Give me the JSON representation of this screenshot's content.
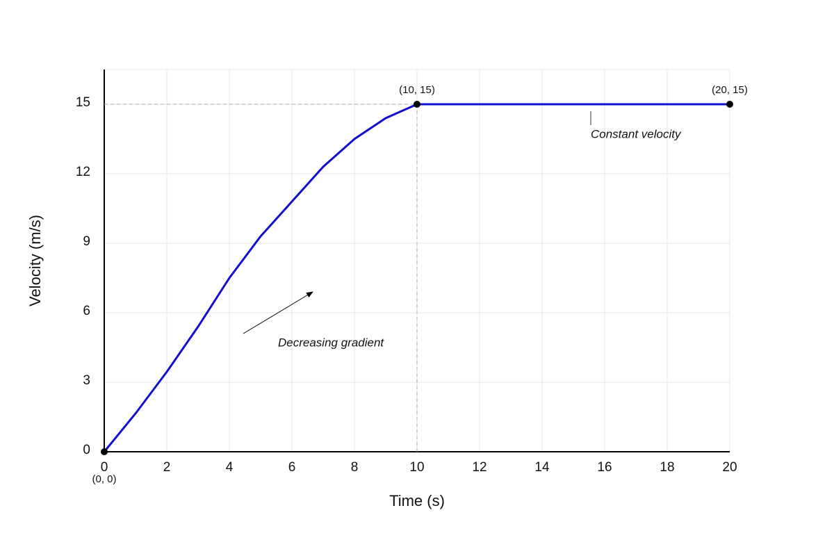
{
  "chart_data": {
    "type": "line",
    "x_label": "Time (s)",
    "y_label": "Velocity (m/s)",
    "x": [
      0,
      1,
      2,
      3,
      4,
      5,
      6,
      7,
      8,
      9,
      10,
      20
    ],
    "series": [
      {
        "name": "Velocity",
        "color": "#1010cc",
        "values": [
          0,
          1.65,
          3.45,
          5.4,
          7.5,
          9.3,
          10.8,
          12.3,
          13.5,
          14.4,
          15,
          15
        ]
      }
    ],
    "xlim": [
      0,
      20
    ],
    "xticks": [
      0,
      2,
      4,
      6,
      8,
      10,
      12,
      14,
      16,
      18,
      20
    ],
    "ylim": [
      0,
      16.5
    ],
    "yticks": [
      0,
      3,
      6,
      9,
      12,
      15
    ],
    "grid": true,
    "point_labels": [
      "(0, 0)",
      "(10, 15)",
      "(20, 15)"
    ],
    "annotations": [
      "Decreasing gradient",
      "Constant velocity"
    ]
  }
}
